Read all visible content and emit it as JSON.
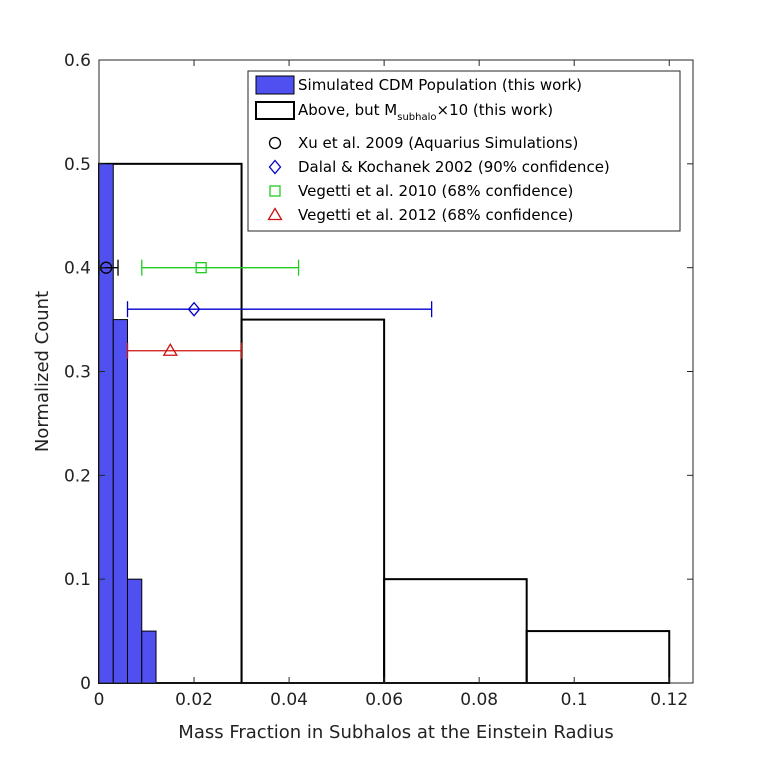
{
  "chart_data": {
    "type": "bar",
    "xlabel": "Mass Fraction in Subhalos at the Einstein Radius",
    "ylabel": "Normalized Count",
    "xlim": [
      0,
      0.125
    ],
    "ylim": [
      0,
      0.6
    ],
    "xticks": [
      0,
      0.02,
      0.04,
      0.06,
      0.08,
      0.1,
      0.12
    ],
    "xtick_labels": [
      "0",
      "0.02",
      "0.04",
      "0.06",
      "0.08",
      "0.1",
      "0.12"
    ],
    "yticks": [
      0,
      0.1,
      0.2,
      0.3,
      0.4,
      0.5,
      0.6
    ],
    "ytick_labels": [
      "0",
      "0.1",
      "0.2",
      "0.3",
      "0.4",
      "0.5",
      "0.6"
    ],
    "histograms": [
      {
        "name": "Simulated CDM Population (this work)",
        "style": "filled",
        "color": "#5050f0",
        "edges": [
          0,
          0.003,
          0.006,
          0.009,
          0.012
        ],
        "values": [
          0.5,
          0.35,
          0.1,
          0.05
        ]
      },
      {
        "name": "Above, but M_subhalo x10 (this work)",
        "style": "outline",
        "color": "#000000",
        "edges": [
          0,
          0.03,
          0.06,
          0.09,
          0.12
        ],
        "values": [
          0.5,
          0.35,
          0.1,
          0.05
        ]
      }
    ],
    "error_points": [
      {
        "name": "Xu et al. 2009 (Aquarius Simulations)",
        "marker": "circle",
        "color": "#000000",
        "x": 0.0015,
        "y": 0.4,
        "xlow": 0.0,
        "xhigh": 0.004
      },
      {
        "name": "Dalal & Kochanek 2002 (90% confidence)",
        "marker": "diamond",
        "color": "#0000cc",
        "x": 0.02,
        "y": 0.36,
        "xlow": 0.006,
        "xhigh": 0.07
      },
      {
        "name": "Vegetti et al. 2010 (68% confidence)",
        "marker": "square",
        "color": "#22cc22",
        "x": 0.0215,
        "y": 0.4,
        "xlow": 0.009,
        "xhigh": 0.042
      },
      {
        "name": "Vegetti et al. 2012 (68% confidence)",
        "marker": "triangle",
        "color": "#cc1111",
        "x": 0.015,
        "y": 0.32,
        "xlow": 0.006,
        "xhigh": 0.03
      }
    ],
    "legend": {
      "position": "top-right",
      "entries": [
        {
          "text": "Simulated CDM Population (this work)",
          "symbol": "filled-rect",
          "color": "#5050f0"
        },
        {
          "text_main": "Above, but M",
          "text_sub": "subhalo",
          "text_end": "×10 (this work)",
          "symbol": "outline-rect",
          "color": "#000000"
        },
        {
          "text": "Xu et al. 2009 (Aquarius Simulations)",
          "symbol": "circle",
          "color": "#000000"
        },
        {
          "text": "Dalal & Kochanek 2002 (90% confidence)",
          "symbol": "diamond",
          "color": "#0000cc"
        },
        {
          "text": "Vegetti et al. 2010 (68% confidence)",
          "symbol": "square",
          "color": "#22cc22"
        },
        {
          "text": "Vegetti et al. 2012 (68% confidence)",
          "symbol": "triangle",
          "color": "#cc1111"
        }
      ]
    }
  }
}
